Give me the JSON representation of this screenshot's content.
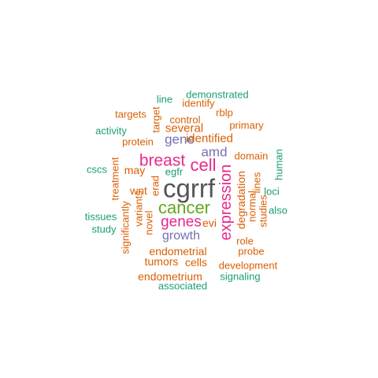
{
  "colors": {
    "green": "#1b9e77",
    "orange": "#d95f02",
    "purple": "#7570b3",
    "magenta": "#e7298a",
    "lime": "#66a61e",
    "gray": "#555555"
  },
  "words": [
    "cgrrf",
    "expression",
    "cancer",
    "cell",
    "breast",
    "genes",
    "amd",
    "gene",
    "growth",
    "identified",
    "several",
    "degradation",
    "demonstrated",
    "identify",
    "line",
    "rblp",
    "targets",
    "target",
    "control",
    "primary",
    "activity",
    "protein",
    "domain",
    "human",
    "cscs",
    "treatment",
    "may",
    "erad",
    "egfr",
    "lines",
    "normal",
    "loci",
    "wnt",
    "studies",
    "tissues",
    "variants",
    "also",
    "study",
    "novel",
    "evi",
    "significantly",
    "role",
    "endometrial",
    "probe",
    "tumors",
    "cells",
    "development",
    "endometrium",
    "signaling",
    "associated"
  ]
}
